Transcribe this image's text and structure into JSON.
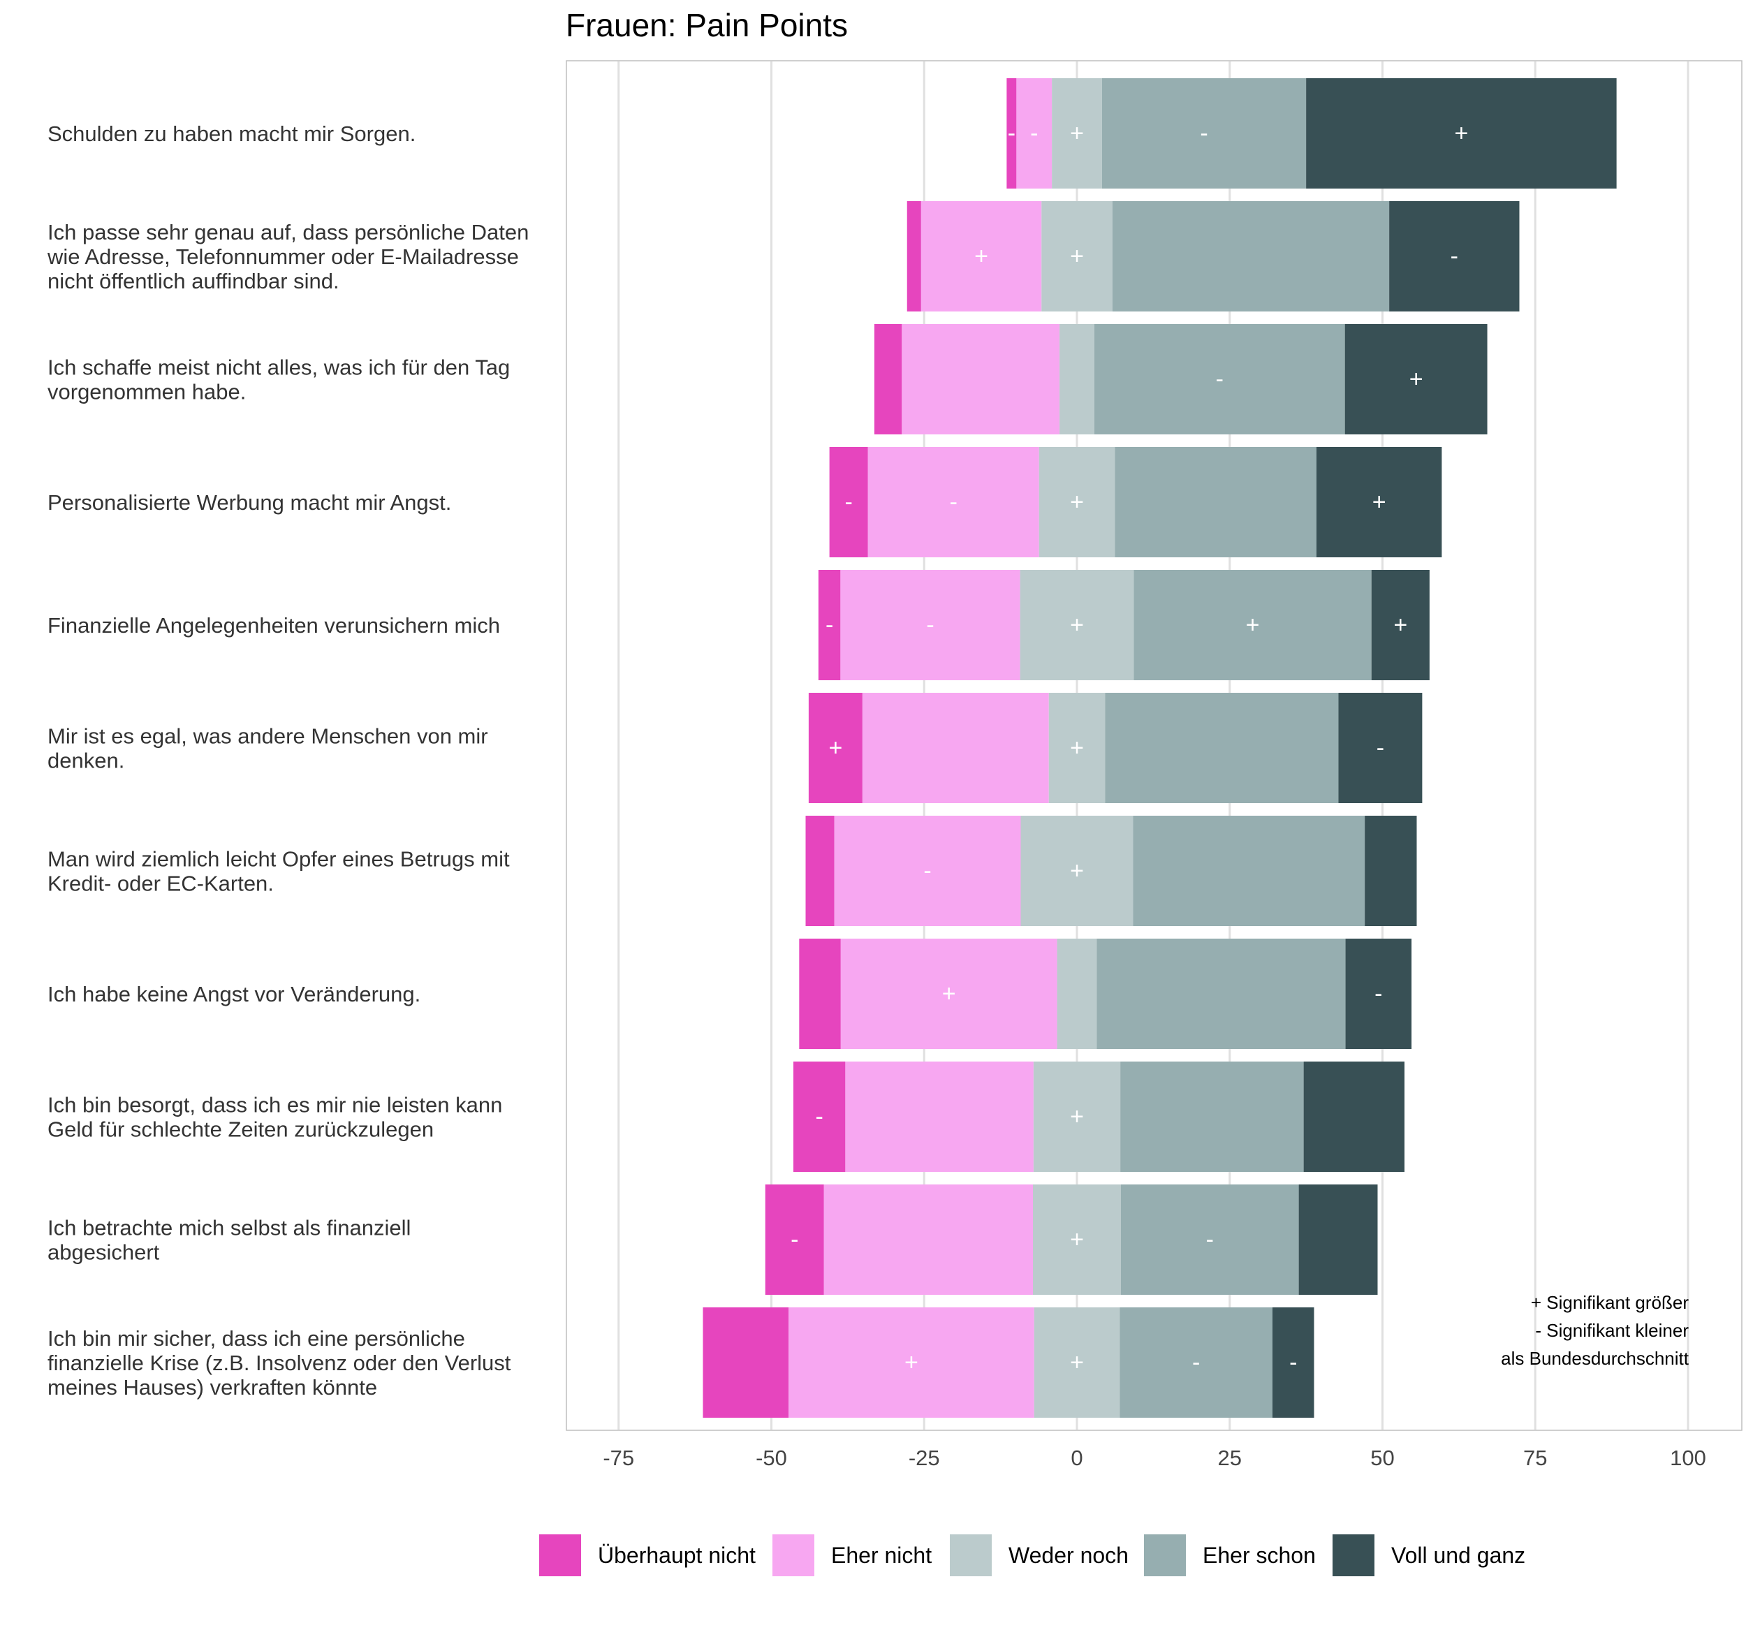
{
  "chart_data": {
    "type": "bar",
    "subtype": "diverging-stacked-horizontal",
    "title": "Frauen: Pain Points",
    "xlim": [
      -83,
      109
    ],
    "xticks": [
      -75,
      -50,
      -25,
      0,
      25,
      50,
      75,
      100
    ],
    "tick_labels": [
      "-75",
      "-50",
      "-25",
      "0",
      "25",
      "50",
      "75",
      "100"
    ],
    "grid": true,
    "legend_position": "bottom",
    "categories_order": [
      "Überhaupt nicht",
      "Eher nicht",
      "Weder noch",
      "Eher schon",
      "Voll und ganz"
    ],
    "series": [
      {
        "name": "Überhaupt nicht",
        "color": "#E645BE"
      },
      {
        "name": "Eher nicht",
        "color": "#F7A7F1"
      },
      {
        "name": "Weder noch",
        "color": "#BBCBCC"
      },
      {
        "name": "Eher schon",
        "color": "#96AEB0"
      },
      {
        "name": "Voll und ganz",
        "color": "#385055"
      }
    ],
    "rows": [
      {
        "label": [
          "Schulden zu haben macht mir Sorgen."
        ],
        "values": [
          1.6,
          5.8,
          8.2,
          33.4,
          50.8
        ],
        "marks": [
          "-",
          "-",
          "+",
          "-",
          "+"
        ]
      },
      {
        "label": [
          "Ich passe sehr genau auf, dass persönliche Daten",
          "wie Adresse, Telefonnummer oder E-Mailadresse",
          "nicht öffentlich auffindbar sind."
        ],
        "values": [
          2.3,
          19.7,
          11.6,
          45.3,
          21.3
        ],
        "marks": [
          "",
          "+",
          "+",
          "",
          "-"
        ]
      },
      {
        "label": [
          "Ich schaffe meist nicht alles, was ich für den Tag",
          "vorgenommen habe."
        ],
        "values": [
          4.5,
          25.8,
          5.7,
          41.0,
          23.3
        ],
        "marks": [
          "",
          "",
          "",
          "-",
          "+"
        ]
      },
      {
        "label": [
          "Personalisierte Werbung macht mir Angst."
        ],
        "values": [
          6.3,
          28.0,
          12.4,
          33.0,
          20.5
        ],
        "marks": [
          "-",
          "-",
          "+",
          "",
          "+"
        ]
      },
      {
        "label": [
          "Finanzielle Angelegenheiten verunsichern mich"
        ],
        "values": [
          3.6,
          29.4,
          18.6,
          38.9,
          9.5
        ],
        "marks": [
          "-",
          "-",
          "+",
          "+",
          "+"
        ]
      },
      {
        "label": [
          "Mir ist es egal, was andere Menschen von mir",
          "denken."
        ],
        "values": [
          8.8,
          30.5,
          9.2,
          38.2,
          13.7
        ],
        "marks": [
          "+",
          "",
          "+",
          "",
          "-"
        ]
      },
      {
        "label": [
          "Man wird ziemlich leicht Opfer eines Betrugs mit",
          "Kredit- oder EC-Karten."
        ],
        "values": [
          4.7,
          30.5,
          18.4,
          37.9,
          8.5
        ],
        "marks": [
          "",
          "-",
          "+",
          "",
          ""
        ]
      },
      {
        "label": [
          "Ich habe keine Angst vor Veränderung."
        ],
        "values": [
          6.8,
          35.4,
          6.5,
          40.7,
          10.8
        ],
        "marks": [
          "",
          "+",
          "",
          "",
          "-"
        ]
      },
      {
        "label": [
          "Ich bin besorgt, dass ich es mir nie leisten kann",
          "Geld für schlechte Zeiten zurückzulegen"
        ],
        "values": [
          8.5,
          30.8,
          14.2,
          30.0,
          16.5
        ],
        "marks": [
          "-",
          "",
          "+",
          "",
          ""
        ]
      },
      {
        "label": [
          "Ich betrachte mich selbst als finanziell",
          "abgesichert"
        ],
        "values": [
          9.6,
          34.2,
          14.4,
          29.1,
          12.9
        ],
        "marks": [
          "-",
          "",
          "+",
          "-",
          ""
        ]
      },
      {
        "label": [
          "Ich bin mir sicher, dass ich eine persönliche",
          "finanzielle Krise (z.B. Insolvenz oder den Verlust",
          "meines Hauses) verkraften könnte"
        ],
        "values": [
          14.0,
          40.2,
          14.0,
          25.0,
          6.8
        ],
        "marks": [
          "",
          "+",
          "+",
          "-",
          "-"
        ]
      }
    ],
    "note": [
      "+ Signifikant größer",
      "- Signifikant kleiner",
      "als Bundesdurchschnitt"
    ]
  }
}
